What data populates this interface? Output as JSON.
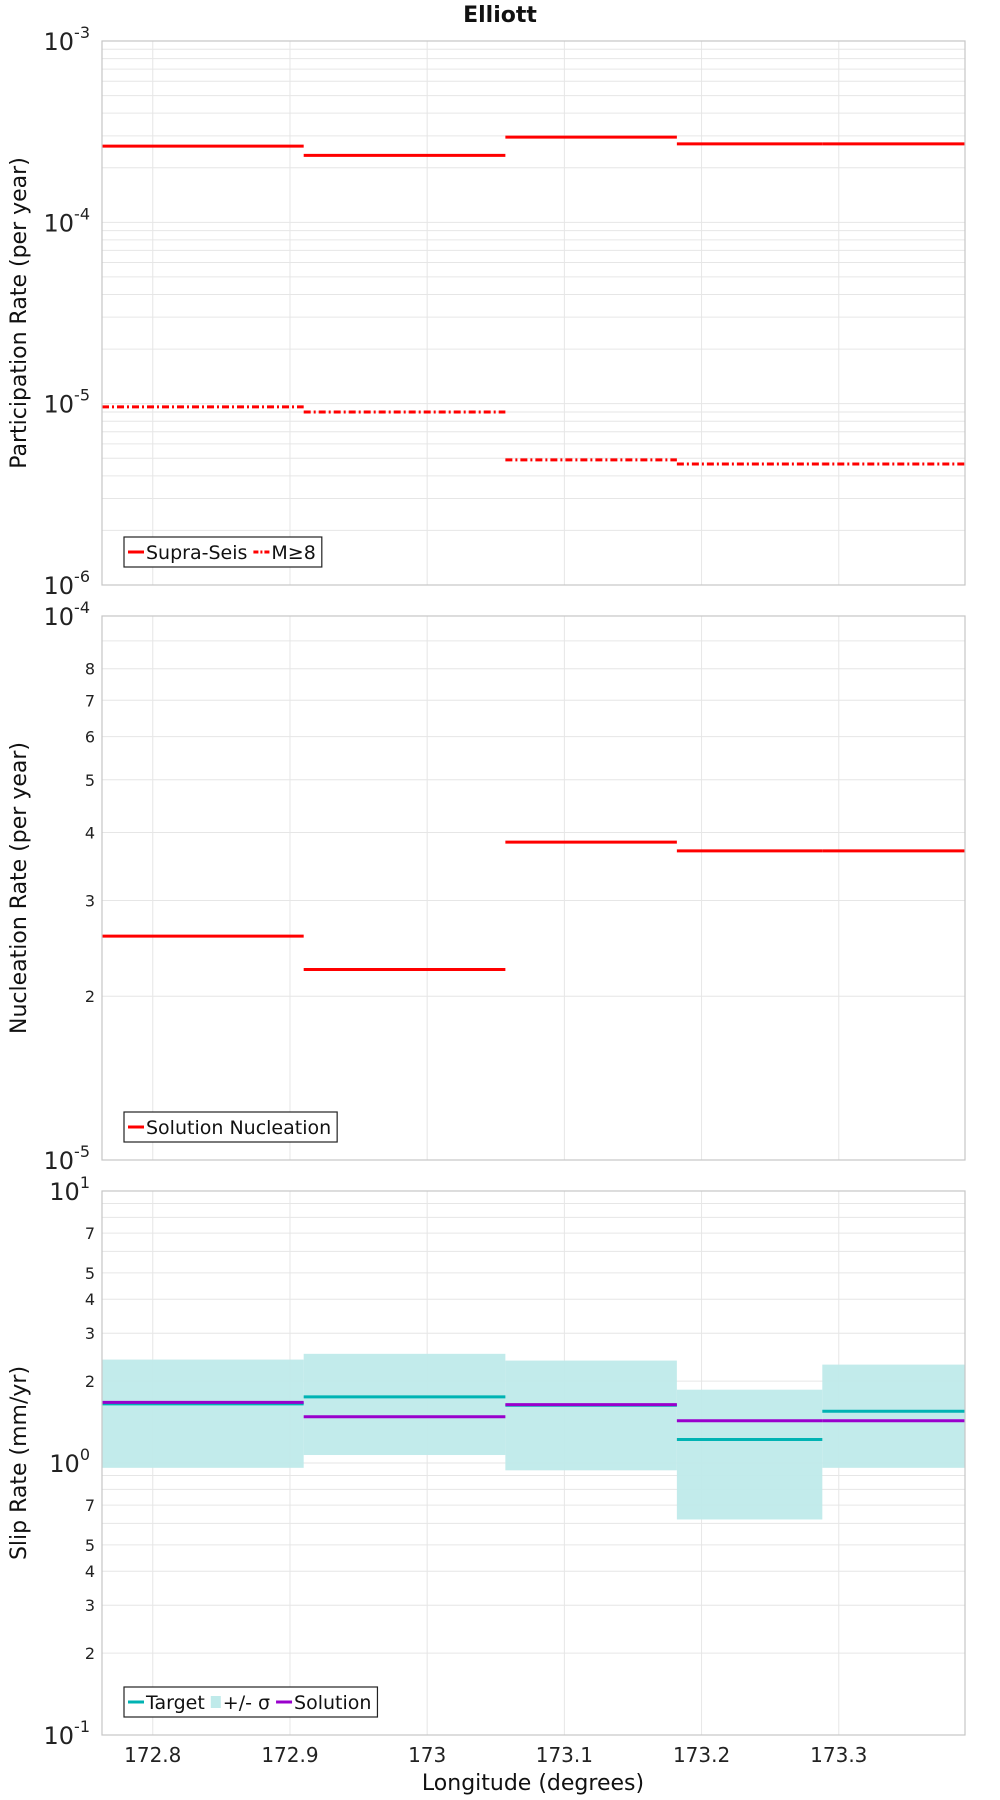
{
  "title": "Elliott",
  "x_axis": {
    "label": "Longitude (degrees)",
    "range": [
      172.763,
      173.392
    ],
    "ticks": [
      172.8,
      172.9,
      173.0,
      173.1,
      173.2,
      173.3
    ],
    "tick_labels": [
      "172.8",
      "172.9",
      "173",
      "173.1",
      "173.2",
      "173.3"
    ]
  },
  "segments": [
    172.763,
    172.91,
    173.057,
    173.182,
    173.288,
    173.392
  ],
  "colors": {
    "red": "#ff0000",
    "teal": "#00b3b3",
    "band": "#bfeaea",
    "purple": "#9900cc"
  },
  "chart_data": [
    {
      "type": "line",
      "title": "Elliott",
      "xlabel": "Longitude (degrees)",
      "ylabel": "Participation Rate (per year)",
      "yscale": "log",
      "ylim": [
        1e-06,
        0.001
      ],
      "grid": true,
      "legend_position": "bottom-left",
      "y_ticks": [
        {
          "value": 1e-06,
          "base": "10",
          "exp": "-6"
        },
        {
          "value": 1e-05,
          "base": "10",
          "exp": "-5"
        },
        {
          "value": 0.0001,
          "base": "10",
          "exp": "-4"
        },
        {
          "value": 0.001,
          "base": "10",
          "exp": "-3"
        }
      ],
      "series": [
        {
          "name": "Supra-Seis",
          "style": "solid",
          "color": "#ff0000",
          "values": [
            0.000263,
            0.000234,
            0.000295,
            0.000271,
            0.000271
          ]
        },
        {
          "name": "M≥8",
          "style": "dashdot",
          "color": "#ff0000",
          "values": [
            9.6e-06,
            9e-06,
            4.9e-06,
            4.65e-06,
            4.65e-06
          ]
        }
      ]
    },
    {
      "type": "line",
      "ylabel": "Nucleation Rate (per year)",
      "yscale": "log",
      "ylim": [
        1e-05,
        0.0001
      ],
      "grid": true,
      "legend_position": "bottom-left",
      "y_ticks": [
        {
          "value": 1e-05,
          "base": "10",
          "exp": "-5"
        },
        {
          "value": 2e-05,
          "base": "2",
          "exp": ""
        },
        {
          "value": 3e-05,
          "base": "3",
          "exp": ""
        },
        {
          "value": 4e-05,
          "base": "4",
          "exp": ""
        },
        {
          "value": 5e-05,
          "base": "5",
          "exp": ""
        },
        {
          "value": 6e-05,
          "base": "6",
          "exp": ""
        },
        {
          "value": 7e-05,
          "base": "7",
          "exp": ""
        },
        {
          "value": 8e-05,
          "base": "8",
          "exp": ""
        },
        {
          "value": 0.0001,
          "base": "10",
          "exp": "-4"
        }
      ],
      "series": [
        {
          "name": "Solution Nucleation",
          "style": "solid",
          "color": "#ff0000",
          "values": [
            2.58e-05,
            2.24e-05,
            3.84e-05,
            3.7e-05,
            3.7e-05
          ]
        }
      ]
    },
    {
      "type": "line",
      "xlabel": "Longitude (degrees)",
      "ylabel": "Slip Rate (mm/yr)",
      "yscale": "log",
      "ylim": [
        0.1,
        10
      ],
      "grid": true,
      "legend_position": "bottom-left",
      "y_ticks": [
        {
          "value": 0.1,
          "base": "10",
          "exp": "-1"
        },
        {
          "value": 0.2,
          "base": "2",
          "exp": ""
        },
        {
          "value": 0.3,
          "base": "3",
          "exp": ""
        },
        {
          "value": 0.4,
          "base": "4",
          "exp": ""
        },
        {
          "value": 0.5,
          "base": "5",
          "exp": ""
        },
        {
          "value": 0.7,
          "base": "7",
          "exp": ""
        },
        {
          "value": 1,
          "base": "10",
          "exp": "0"
        },
        {
          "value": 2,
          "base": "2",
          "exp": ""
        },
        {
          "value": 3,
          "base": "3",
          "exp": ""
        },
        {
          "value": 4,
          "base": "4",
          "exp": ""
        },
        {
          "value": 5,
          "base": "5",
          "exp": ""
        },
        {
          "value": 7,
          "base": "7",
          "exp": ""
        },
        {
          "value": 10,
          "base": "10",
          "exp": "1"
        }
      ],
      "series": [
        {
          "name": "Target",
          "style": "solid",
          "color": "#00b3b3",
          "values": [
            1.65,
            1.75,
            1.63,
            1.22,
            1.55
          ]
        },
        {
          "name": "+/- σ",
          "style": "band",
          "color": "#bfeaea",
          "lower": [
            0.96,
            1.07,
            0.94,
            0.62,
            0.96
          ],
          "upper": [
            2.4,
            2.52,
            2.38,
            1.86,
            2.3
          ]
        },
        {
          "name": "Solution",
          "style": "solid",
          "color": "#9900cc",
          "values": [
            1.67,
            1.48,
            1.64,
            1.43,
            1.43
          ]
        }
      ]
    }
  ]
}
